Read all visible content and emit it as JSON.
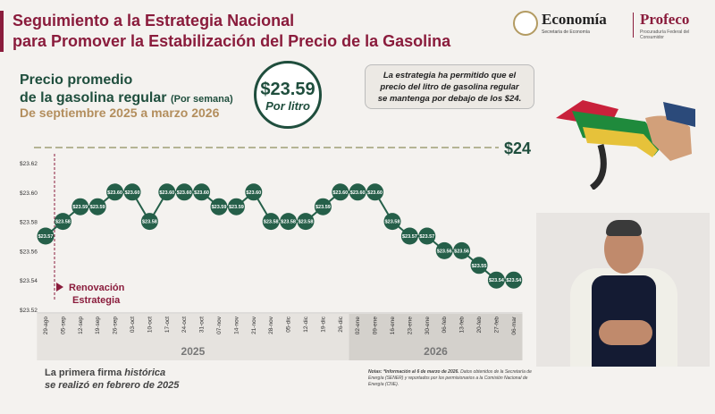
{
  "header": {
    "title_line1": "Seguimiento a la Estrategia Nacional",
    "title_line2": "para Promover la Estabilización del Precio de la Gasolina"
  },
  "logos": {
    "economia": "Economía",
    "economia_sub": "Secretaría de Economía",
    "profeco": "Profeco",
    "profeco_sub": "Procuraduría Federal del Consumidor"
  },
  "subtitle": {
    "line1": "Precio promedio",
    "line2": "de la gasolina regular",
    "per_week": "(Por semana)",
    "period": "De septiembre 2025 a marzo 2026"
  },
  "price_badge": {
    "value": "$23.59",
    "unit": "Por litro"
  },
  "note_box": {
    "line1": "La estrategia ha permitido que el",
    "line2": "precio del litro de gasolina regular",
    "line3": "se mantenga por debajo de los $24."
  },
  "footnotes": {
    "first_signing_line1a": "La primera firma ",
    "first_signing_italic": "histórica",
    "first_signing_line2": "se realizó en febrero de 2025",
    "source_note_bold": "Notas: *Información al 6 de marzo de 2026.",
    "source_note": " Datos obtenidos de la Secretaría de Energía (SENER) y reportados por los permisionarios a la Comisión Nacional de Energía (CNE)."
  },
  "colors": {
    "brand": "#8a1c3c",
    "accent_green": "#1f4e3d",
    "gold": "#b38e5d",
    "series": "#255f49"
  },
  "chart_data": {
    "type": "line",
    "title": "",
    "xlabel": "",
    "ylabel": "",
    "ylim": [
      23.52,
      23.62
    ],
    "y_ticks": [
      "$23.52",
      "$23.54",
      "$23.56",
      "$23.58",
      "$23.60",
      "$23.62"
    ],
    "categories": [
      "29-ago",
      "05-sep",
      "12-sep",
      "19-sep",
      "26-sep",
      "03-oct",
      "10-oct",
      "17-oct",
      "24-oct",
      "31-oct",
      "07-nov",
      "14-nov",
      "21-nov",
      "28-nov",
      "05-dic",
      "12-dic",
      "19-dic",
      "26-dic",
      "02-ene",
      "09-ene",
      "16-ene",
      "23-ene",
      "30-ene",
      "06-feb",
      "13-feb",
      "20-feb",
      "27-feb",
      "06-mar"
    ],
    "series": [
      {
        "values": [
          23.57,
          23.58,
          23.59,
          23.59,
          23.6,
          23.6,
          23.58,
          23.6,
          23.6,
          23.6,
          23.59,
          23.59,
          23.6,
          23.58,
          23.58,
          23.58,
          23.59,
          23.6,
          23.6,
          23.6,
          23.58,
          23.57,
          23.57,
          23.56,
          23.56,
          23.55,
          23.54,
          23.54
        ],
        "labels": [
          "$23.57",
          "$23.58",
          "$23.59",
          "$23.59",
          "$23.60",
          "$23.60",
          "$23.58",
          "$23.60",
          "$23.60",
          "$23.60",
          "$23.59",
          "$23.59",
          "$23.60",
          "$23.58",
          "$23.58",
          "$23.58",
          "$23.59",
          "$23.60",
          "$23.60",
          "$23.60",
          "$23.58",
          "$23.57",
          "$23.57",
          "$23.56",
          "$23.56",
          "$23.55",
          "$23.54",
          "$23.54"
        ]
      }
    ],
    "reference_line": {
      "label": "$24"
    },
    "year_bands": [
      {
        "label": "2025",
        "from": "29-ago",
        "to": "26-dic"
      },
      {
        "label": "2026",
        "from": "02-ene",
        "to": "06-mar"
      }
    ],
    "annotation": {
      "line1": "Renovación",
      "line2": "Estrategia",
      "at": "29-ago"
    },
    "grid": false
  }
}
